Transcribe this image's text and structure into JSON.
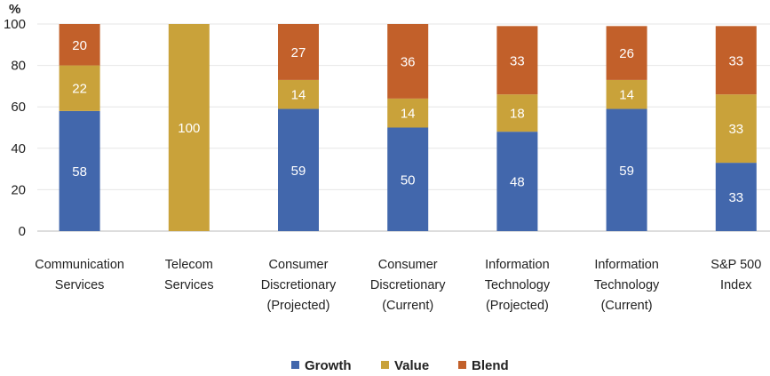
{
  "chart_data": {
    "type": "bar",
    "stacked": true,
    "y_unit": "%",
    "ylim": [
      0,
      100
    ],
    "yticks": [
      "0",
      "20",
      "40",
      "60",
      "80",
      "100"
    ],
    "grid": true,
    "legend_position": "bottom-center",
    "categories": [
      [
        "Communication",
        "Services"
      ],
      [
        "Telecom",
        "Services"
      ],
      [
        "Consumer",
        "Discretionary",
        "(Projected)"
      ],
      [
        "Consumer",
        "Discretionary",
        "(Current)"
      ],
      [
        "Information",
        "Technology",
        "(Projected)"
      ],
      [
        "Information",
        "Technology",
        "(Current)"
      ],
      [
        "S&P 500",
        "Index"
      ]
    ],
    "series": [
      {
        "name": "Growth",
        "color": "#4267ac",
        "values": [
          58,
          0,
          59,
          50,
          48,
          59,
          33
        ]
      },
      {
        "name": "Value",
        "color": "#c9a23a",
        "values": [
          22,
          100,
          14,
          14,
          18,
          14,
          33
        ]
      },
      {
        "name": "Blend",
        "color": "#c2602a",
        "values": [
          20,
          0,
          27,
          36,
          33,
          26,
          33
        ]
      }
    ]
  }
}
